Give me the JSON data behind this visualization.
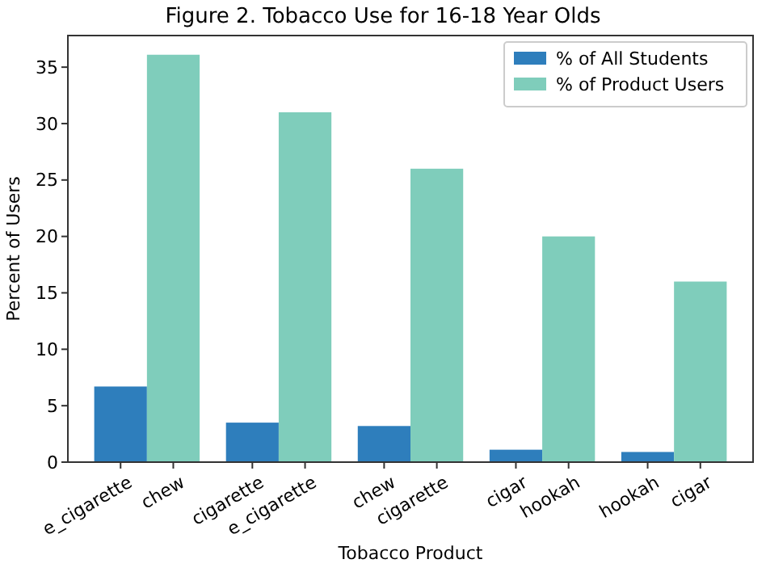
{
  "chart_data": {
    "type": "bar",
    "title": "Figure 2. Tobacco Use for 16-18 Year Olds",
    "xlabel": "Tobacco Product",
    "ylabel": "Percent of Users",
    "categories": [
      "e_cigarette",
      "chew",
      "cigarette",
      "e_cigarette",
      "chew",
      "cigarette",
      "cigar",
      "hookah",
      "hookah",
      "cigar"
    ],
    "series": [
      {
        "name": "% of All Students",
        "color": "#2e7ebc",
        "values": [
          6.7,
          null,
          3.5,
          null,
          3.2,
          null,
          1.1,
          null,
          0.9,
          null
        ]
      },
      {
        "name": "% of Product Users",
        "color": "#7fcdbb",
        "values": [
          null,
          36.1,
          null,
          31,
          null,
          26,
          null,
          20,
          null,
          16
        ]
      }
    ],
    "ylim": [
      0,
      37.8
    ],
    "yticks": [
      0,
      5,
      10,
      15,
      20,
      25,
      30,
      35
    ],
    "grid": false,
    "legend": "top right"
  }
}
